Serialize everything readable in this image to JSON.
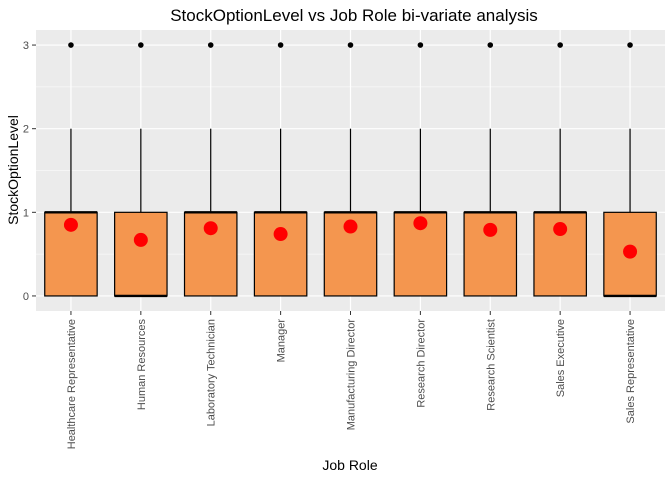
{
  "chart_data": {
    "type": "boxplot",
    "title": "StockOptionLevel vs Job Role bi-variate analysis",
    "xlabel": "Job Role",
    "ylabel": "StockOptionLevel",
    "ylim": [
      -0.18,
      3.18
    ],
    "yticks": [
      0,
      1,
      2,
      3
    ],
    "grid": true,
    "categories": [
      "Healthcare Representative",
      "Human Resources",
      "Laboratory Technician",
      "Manager",
      "Manufacturing Director",
      "Research Director",
      "Research Scientist",
      "Sales Executive",
      "Sales Representative"
    ],
    "boxes": [
      {
        "min": 0,
        "q1": 0,
        "median": 1,
        "q3": 1,
        "whisker_high": 2,
        "outliers": [
          3
        ],
        "mean": 0.85
      },
      {
        "min": 0,
        "q1": 0,
        "median": 0,
        "q3": 1,
        "whisker_high": 2,
        "outliers": [
          3
        ],
        "mean": 0.67
      },
      {
        "min": 0,
        "q1": 0,
        "median": 1,
        "q3": 1,
        "whisker_high": 2,
        "outliers": [
          3
        ],
        "mean": 0.81
      },
      {
        "min": 0,
        "q1": 0,
        "median": 1,
        "q3": 1,
        "whisker_high": 2,
        "outliers": [
          3
        ],
        "mean": 0.74
      },
      {
        "min": 0,
        "q1": 0,
        "median": 1,
        "q3": 1,
        "whisker_high": 2,
        "outliers": [
          3
        ],
        "mean": 0.83
      },
      {
        "min": 0,
        "q1": 0,
        "median": 1,
        "q3": 1,
        "whisker_high": 2,
        "outliers": [
          3
        ],
        "mean": 0.87
      },
      {
        "min": 0,
        "q1": 0,
        "median": 1,
        "q3": 1,
        "whisker_high": 2,
        "outliers": [
          3
        ],
        "mean": 0.79
      },
      {
        "min": 0,
        "q1": 0,
        "median": 1,
        "q3": 1,
        "whisker_high": 2,
        "outliers": [
          3
        ],
        "mean": 0.8
      },
      {
        "min": 0,
        "q1": 0,
        "median": 0,
        "q3": 1,
        "whisker_high": 2,
        "outliers": [
          3
        ],
        "mean": 0.53
      }
    ],
    "colors": {
      "box_fill": "#f4964f",
      "mean_point": "#ff0000",
      "panel_bg": "#ebebeb",
      "grid": "#ffffff",
      "line": "#000000"
    }
  }
}
